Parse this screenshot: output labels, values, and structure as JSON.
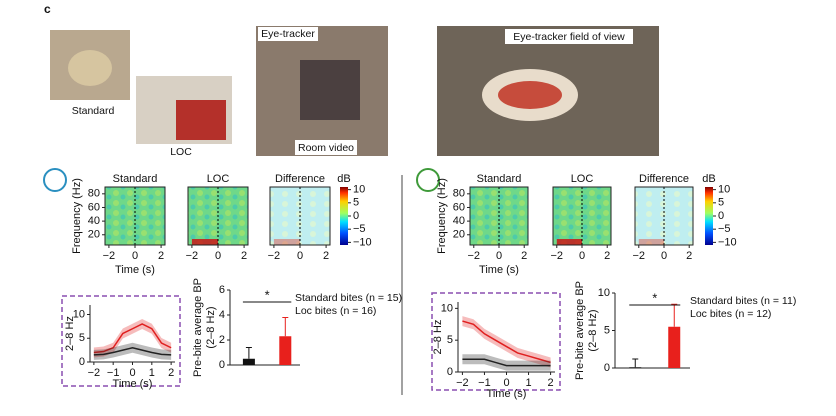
{
  "panel_label": "c",
  "photos": {
    "standard": "Standard",
    "loc": "LOC",
    "eye_tracker": "Eye-tracker",
    "room_video": "Room video",
    "field_of_view": "Eye-tracker field of view"
  },
  "patients": [
    {
      "spectrogram": {
        "titles": [
          "Standard",
          "LOC",
          "Difference"
        ],
        "ylabel": "Frequency (Hz)",
        "ylim": [
          5,
          90
        ],
        "yticks": [
          20,
          40,
          60,
          80
        ],
        "xlabel": "Time (s)",
        "xlim": [
          -2.3,
          2.3
        ],
        "xticks": [
          {
            "value": -2,
            "label": "−2"
          },
          0,
          2
        ],
        "colorbar": {
          "label": "dB",
          "lim": [
            -11,
            11
          ],
          "ticks": [
            10,
            5,
            0,
            {
              "value": -5,
              "label": "−5"
            },
            {
              "value": -10,
              "label": "−10"
            }
          ]
        }
      },
      "trace": {
        "ylabel": "2–8 Hz",
        "ylim": [
          0,
          12
        ],
        "yticks": [
          0,
          5,
          10
        ],
        "xlim": [
          -2.2,
          2.2
        ],
        "xticks": [
          {
            "value": -2,
            "label": "−2"
          },
          {
            "value": -1,
            "label": "−1"
          },
          0,
          1,
          2
        ],
        "xlabel": "Time (s)",
        "x": [
          -2,
          -1.5,
          -1,
          -0.5,
          0,
          0.5,
          1,
          1.5,
          2
        ],
        "series": [
          {
            "color": "#e02020",
            "values": [
              2,
              2.2,
              3,
              6,
              7,
              8,
              7,
              4,
              3
            ]
          },
          {
            "color": "#222222",
            "values": [
              1.5,
              1.6,
              2,
              2.5,
              3,
              2.5,
              2,
              1.6,
              1.5
            ]
          }
        ]
      },
      "bars": {
        "ylabel": [
          "Pre-bite average BP",
          "(2–8 Hz)"
        ],
        "ylim": [
          0,
          6
        ],
        "yticks": [
          0,
          2,
          4,
          6
        ],
        "significance": "*",
        "series": [
          {
            "name": "Standard bites (n = 15)",
            "color": "#111111",
            "value": 0.5,
            "error": 0.9
          },
          {
            "name": "Loc bites (n = 16)",
            "color": "#e8201c",
            "value": 2.3,
            "error": 1.5
          }
        ]
      }
    },
    {
      "spectrogram": {
        "titles": [
          "Standard",
          "LOC",
          "Difference"
        ],
        "ylabel": "Frequency (Hz)",
        "ylim": [
          5,
          90
        ],
        "yticks": [
          20,
          40,
          60,
          80
        ],
        "xlabel": "Time (s)",
        "xlim": [
          -2.3,
          2.3
        ],
        "xticks": [
          {
            "value": -2,
            "label": "−2"
          },
          0,
          2
        ],
        "colorbar": {
          "label": "dB",
          "lim": [
            -11,
            11
          ],
          "ticks": [
            10,
            5,
            0,
            {
              "value": -5,
              "label": "−5"
            },
            {
              "value": -10,
              "label": "−10"
            }
          ]
        }
      },
      "trace": {
        "ylabel": "2–8 Hz",
        "ylim": [
          0,
          11
        ],
        "yticks": [
          0,
          5,
          10
        ],
        "xlim": [
          -2.2,
          2.2
        ],
        "xticks": [
          {
            "value": -2,
            "label": "−2"
          },
          {
            "value": -1,
            "label": "−1"
          },
          0,
          1,
          2
        ],
        "xlabel": "Time (s)",
        "x": [
          -2,
          -1.5,
          -1,
          -0.5,
          0,
          0.5,
          1,
          1.5,
          2
        ],
        "series": [
          {
            "color": "#e02020",
            "values": [
              8,
              7.5,
              6,
              5,
              4,
              3,
              2.5,
              2,
              1.5
            ]
          },
          {
            "color": "#222222",
            "values": [
              2,
              2,
              2,
              1.5,
              1,
              1,
              1,
              1,
              1
            ]
          }
        ]
      },
      "bars": {
        "ylabel": [
          "Pre-bite average BP",
          "(2–8 Hz)"
        ],
        "ylim": [
          0,
          10
        ],
        "yticks": [
          0,
          5,
          10
        ],
        "significance": "*",
        "series": [
          {
            "name": "Standard bites (n = 11)",
            "color": "#111111",
            "value": 0.1,
            "error": 1.1
          },
          {
            "name": "Loc bites (n = 12)",
            "color": "#e8201c",
            "value": 5.5,
            "error": 3
          }
        ]
      }
    }
  ]
}
